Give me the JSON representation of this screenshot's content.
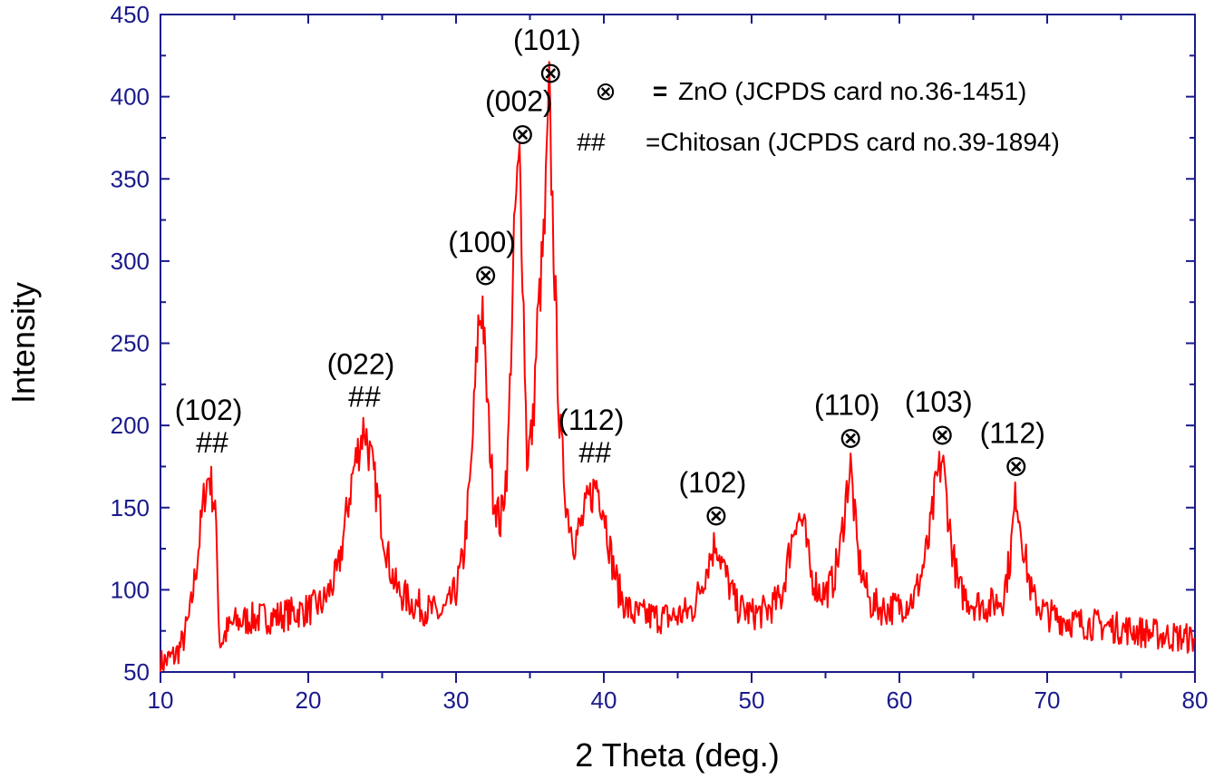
{
  "chart_data": {
    "type": "line",
    "xlabel": "2 Theta (deg.)",
    "ylabel": "Intensity",
    "xlim": [
      10,
      80
    ],
    "ylim": [
      50,
      450
    ],
    "xticks": [
      10,
      20,
      30,
      40,
      50,
      60,
      70,
      80
    ],
    "yticks": [
      50,
      100,
      150,
      200,
      250,
      300,
      350,
      400,
      450
    ],
    "grid": false,
    "colors": {
      "line": "#ff0000",
      "axis": "#1a1a8c",
      "text": "#000000"
    },
    "series": [
      {
        "x": [
          10,
          11,
          11.5,
          12,
          12.5,
          13,
          13.3,
          13.7,
          14,
          14.1,
          14.5,
          15,
          16,
          17,
          18,
          19,
          20,
          21,
          22,
          22.5,
          23,
          23.5,
          23.8,
          24.3,
          25,
          25.5,
          26,
          27,
          28,
          29,
          29.5,
          30,
          30.5,
          31,
          31.5,
          31.8,
          32,
          32.5,
          33,
          33.5,
          34,
          34.3,
          34.5,
          34.8,
          35.2,
          35.5,
          36,
          36.3,
          36.6,
          37,
          37.5,
          38,
          38.5,
          39,
          39.5,
          40,
          40.5,
          41,
          41.5,
          42,
          43,
          44,
          45,
          46,
          46.5,
          47,
          47.6,
          48.2,
          49,
          50,
          51,
          52,
          52.5,
          53,
          53.5,
          54,
          54.5,
          55,
          55.5,
          56,
          56.5,
          56.7,
          57.2,
          58,
          59,
          60,
          61,
          61.5,
          62,
          62.5,
          62.9,
          63.5,
          64,
          65,
          66,
          67,
          67.5,
          67.9,
          68.5,
          69,
          70,
          72,
          74,
          76,
          78,
          80
        ],
        "y": [
          55,
          60,
          68,
          85,
          120,
          160,
          170,
          150,
          70,
          68,
          75,
          80,
          82,
          83,
          84,
          86,
          88,
          92,
          110,
          140,
          170,
          190,
          200,
          175,
          140,
          115,
          100,
          92,
          88,
          85,
          90,
          100,
          120,
          170,
          260,
          275,
          230,
          160,
          140,
          180,
          330,
          360,
          300,
          180,
          200,
          260,
          320,
          400,
          310,
          200,
          150,
          130,
          140,
          155,
          165,
          150,
          120,
          100,
          90,
          85,
          84,
          83,
          84,
          88,
          100,
          115,
          130,
          110,
          90,
          85,
          87,
          95,
          120,
          145,
          140,
          110,
          100,
          98,
          105,
          125,
          165,
          175,
          120,
          92,
          88,
          90,
          95,
          110,
          130,
          165,
          180,
          130,
          100,
          92,
          90,
          95,
          120,
          160,
          120,
          95,
          85,
          80,
          78,
          75,
          72,
          70
        ]
      }
    ],
    "peak_labels": [
      {
        "text": "(102)",
        "marker": "##",
        "x": 13.5,
        "y": 178
      },
      {
        "text": "(022)",
        "marker": "##",
        "x": 23.8,
        "y": 206
      },
      {
        "text": "(100)",
        "marker": "⊗",
        "x": 32.0,
        "y": 280
      },
      {
        "text": "(002)",
        "marker": "⊗",
        "x": 34.5,
        "y": 366
      },
      {
        "text": "(101)",
        "marker": "⊗",
        "x": 36.4,
        "y": 403
      },
      {
        "text": "(112)",
        "marker": "##",
        "x": 39.4,
        "y": 172
      },
      {
        "text": "(102)",
        "marker": "⊗",
        "x": 47.6,
        "y": 134
      },
      {
        "text": "(110)",
        "marker": "⊗",
        "x": 56.7,
        "y": 181
      },
      {
        "text": "(103)",
        "marker": "⊗",
        "x": 62.9,
        "y": 183
      },
      {
        "text": "(112)",
        "marker": "⊗",
        "x": 67.9,
        "y": 164
      }
    ],
    "legend": {
      "placement": "top-right",
      "entries": [
        {
          "symbol": "⊗",
          "separator": "=",
          "text": "ZnO   (JCPDS card no.36-1451)"
        },
        {
          "symbol": "##",
          "separator": "",
          "text": "=Chitosan (JCPDS card no.39-1894)"
        }
      ]
    }
  }
}
